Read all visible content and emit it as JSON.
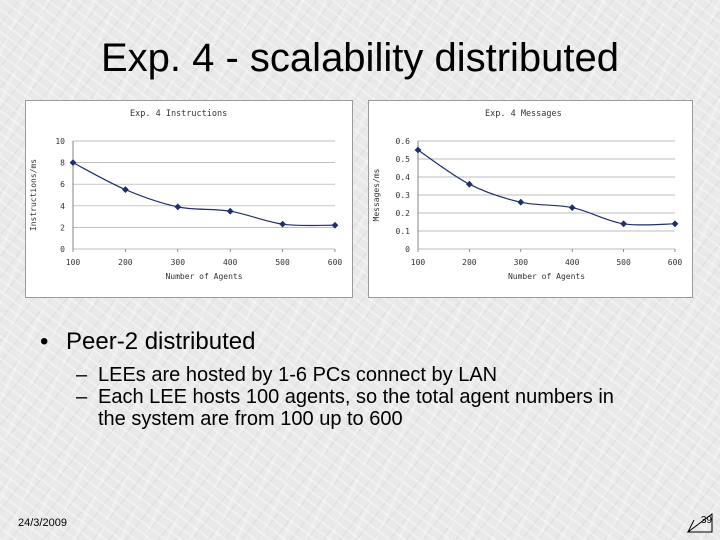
{
  "slide": {
    "title": "Exp. 4 - scalability distributed",
    "bullet": "Peer-2 distributed",
    "subitems": [
      "LEEs are hosted by 1-6 PCs connect by LAN",
      "Each LEE hosts 100 agents, so the total agent numbers in the system are from 100 up to 600"
    ],
    "date": "24/3/2009",
    "page_number": "39"
  },
  "chart_data": [
    {
      "type": "line",
      "title": "Exp. 4  Instructions",
      "xlabel": "Number of Agents",
      "ylabel": "Instructions/ms",
      "x": [
        100,
        200,
        300,
        400,
        500,
        600
      ],
      "series": [
        {
          "values": [
            8.0,
            5.5,
            3.9,
            3.5,
            2.3,
            2.2
          ]
        }
      ],
      "ylim": [
        0,
        10
      ],
      "yticks": [
        0,
        2,
        4,
        6,
        8,
        10
      ],
      "xticks": [
        100,
        200,
        300,
        400,
        500,
        600
      ],
      "xtick_labels": [
        "100",
        "200",
        "300",
        "400",
        "500",
        "600"
      ],
      "ytick_labels": [
        "0",
        "2",
        "4",
        "6",
        "8",
        "10"
      ],
      "grid": true,
      "line_color": "#1f2f6e"
    },
    {
      "type": "line",
      "title": "Exp. 4  Messages",
      "xlabel": "Number of Agents",
      "ylabel": "Messages/ms",
      "x": [
        100,
        200,
        300,
        400,
        500,
        600
      ],
      "series": [
        {
          "values": [
            0.55,
            0.36,
            0.26,
            0.23,
            0.14,
            0.14
          ]
        }
      ],
      "ylim": [
        0,
        0.6
      ],
      "yticks": [
        0,
        0.1,
        0.2,
        0.3,
        0.4,
        0.5,
        0.6
      ],
      "xticks": [
        100,
        200,
        300,
        400,
        500,
        600
      ],
      "xtick_labels": [
        "100",
        "200",
        "300",
        "400",
        "500",
        "600"
      ],
      "ytick_labels": [
        "0",
        "0.1",
        "0.2",
        "0.3",
        "0.4",
        "0.5",
        "0.6"
      ],
      "grid": true,
      "line_color": "#1f2f6e"
    }
  ]
}
